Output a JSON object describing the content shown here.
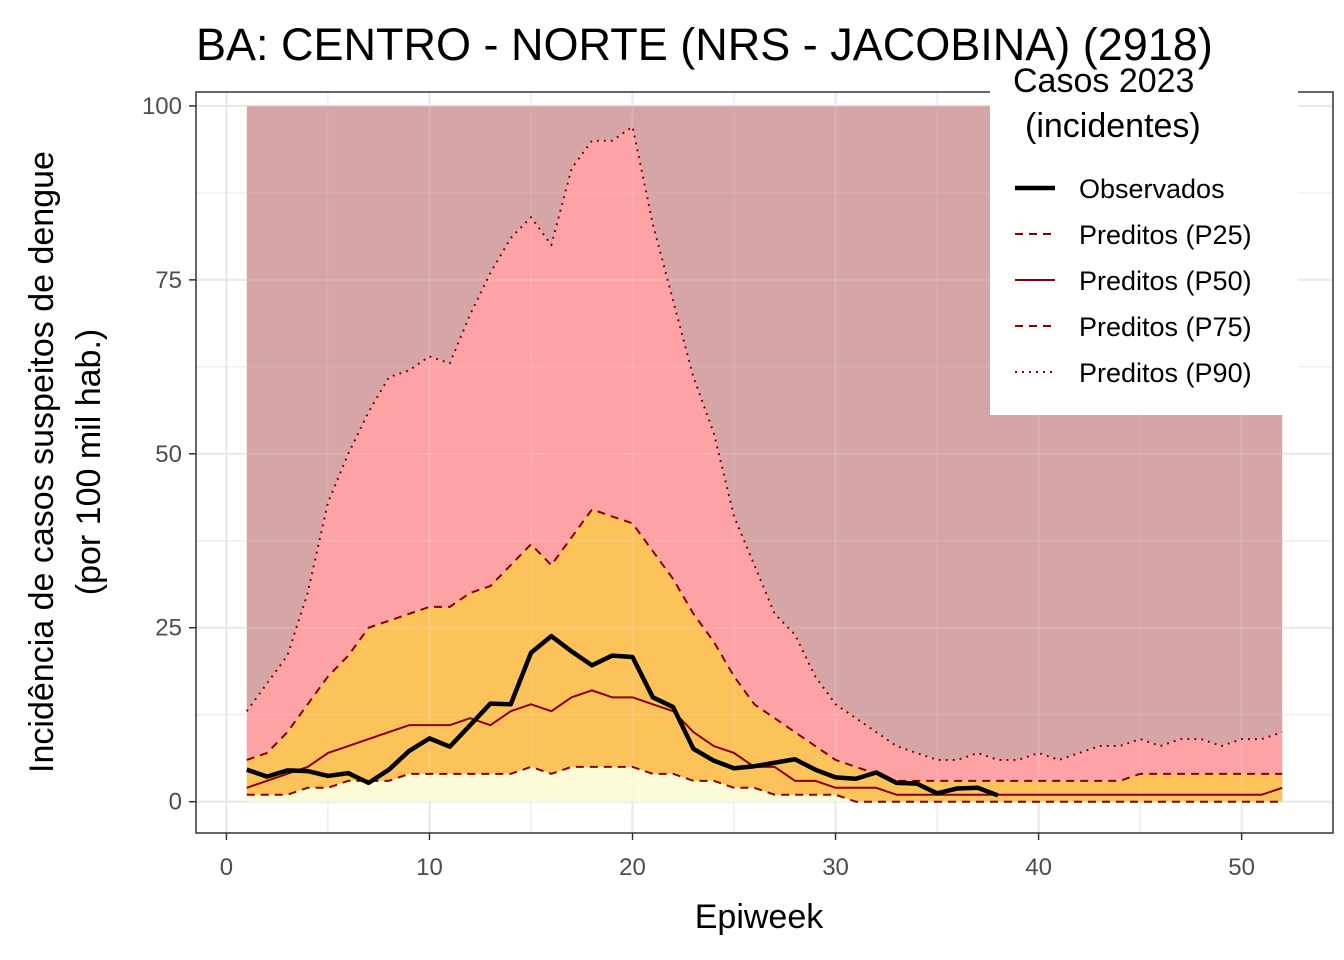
{
  "chart_data": {
    "type": "line",
    "title": "BA: CENTRO - NORTE (NRS - JACOBINA) (2918)",
    "xlabel": "Epiweek",
    "ylabel_line1": "Incidência de casos suspeitos de dengue",
    "ylabel_line2": "(por 100 mil hab.)",
    "xlim": [
      -1.5,
      54.5
    ],
    "ylim": [
      -4.5,
      102
    ],
    "x_ticks": [
      "0",
      "10",
      "20",
      "30",
      "40",
      "50"
    ],
    "x_tick_values": [
      0,
      10,
      20,
      30,
      40,
      50
    ],
    "y_ticks": [
      "0",
      "25",
      "50",
      "75",
      "100"
    ],
    "y_tick_values": [
      0,
      25,
      50,
      75,
      100
    ],
    "grid": true,
    "legend_position": "top-right",
    "legend": {
      "title_line1": "Casos 2023",
      "title_line2": "(incidentes)",
      "entries": [
        "Observados",
        "Preditos (P25)",
        "Preditos (P50)",
        "Preditos (P75)",
        "Preditos (P90)"
      ]
    },
    "colors": {
      "background_band": "#d5a5a8",
      "band_p75_p90": "#fda3a6",
      "band_p25_p75": "#fdc35b",
      "band_0_p25": "#fdfcd9",
      "predicted_line": "#8b0000",
      "observed_line": "#000000",
      "grid": "#ebebeb"
    },
    "weeks": [
      1,
      2,
      3,
      4,
      5,
      6,
      7,
      8,
      9,
      10,
      11,
      12,
      13,
      14,
      15,
      16,
      17,
      18,
      19,
      20,
      21,
      22,
      23,
      24,
      25,
      26,
      27,
      28,
      29,
      30,
      31,
      32,
      33,
      34,
      35,
      36,
      37,
      38,
      39,
      40,
      41,
      42,
      43,
      44,
      45,
      46,
      47,
      48,
      49,
      50,
      51,
      52
    ],
    "background_top": 100,
    "series": [
      {
        "name": "Preditos (P25)",
        "values": [
          1,
          1,
          1,
          2,
          2,
          3,
          3,
          3,
          4,
          4,
          4,
          4,
          4,
          4,
          5,
          4,
          5,
          5,
          5,
          5,
          4,
          4,
          3,
          3,
          2,
          2,
          1,
          1,
          1,
          1,
          0,
          0,
          0,
          0,
          0,
          0,
          0,
          0,
          0,
          0,
          0,
          0,
          0,
          0,
          0,
          0,
          0,
          0,
          0,
          0,
          0,
          0
        ]
      },
      {
        "name": "Preditos (P50)",
        "values": [
          2,
          3,
          4,
          5,
          7,
          8,
          9,
          10,
          11,
          11,
          11,
          12,
          11,
          13,
          14,
          13,
          15,
          16,
          15,
          15,
          14,
          13,
          10,
          8,
          7,
          5,
          5,
          3,
          3,
          2,
          2,
          2,
          1,
          1,
          1,
          1,
          1,
          1,
          1,
          1,
          1,
          1,
          1,
          1,
          1,
          1,
          1,
          1,
          1,
          1,
          1,
          2
        ]
      },
      {
        "name": "Preditos (P75)",
        "values": [
          6,
          7,
          10,
          14,
          18,
          21,
          25,
          26,
          27,
          28,
          28,
          30,
          31,
          34,
          37,
          34,
          38,
          42,
          41,
          40,
          36,
          32,
          27,
          23,
          18,
          14,
          12,
          10,
          8,
          6,
          5,
          4,
          3,
          3,
          3,
          3,
          3,
          3,
          3,
          3,
          3,
          3,
          3,
          3,
          4,
          4,
          4,
          4,
          4,
          4,
          4,
          4
        ]
      },
      {
        "name": "Preditos (P90)",
        "values": [
          13,
          17,
          21,
          30,
          43,
          50,
          56,
          61,
          62,
          64,
          63,
          70,
          76,
          81,
          84,
          80,
          91,
          95,
          95,
          97,
          83,
          72,
          61,
          53,
          41,
          34,
          27,
          24,
          18,
          14,
          12,
          10,
          8,
          7,
          6,
          6,
          7,
          6,
          6,
          7,
          6,
          7,
          8,
          8,
          9,
          8,
          9,
          9,
          8,
          9,
          9,
          10
        ]
      },
      {
        "name": "Observados",
        "values": [
          4.6,
          3.6,
          4.5,
          4.4,
          3.7,
          4.1,
          2.7,
          4.6,
          7.3,
          9.1,
          7.9,
          11,
          14.1,
          14,
          21.4,
          23.8,
          21.6,
          19.6,
          21,
          20.8,
          15,
          13.6,
          7.6,
          5.9,
          4.8,
          5.1,
          5.6,
          6.1,
          4.6,
          3.5,
          3.3,
          4.2,
          2.7,
          2.6,
          1.2,
          1.9,
          2.0,
          0.9
        ]
      }
    ]
  }
}
